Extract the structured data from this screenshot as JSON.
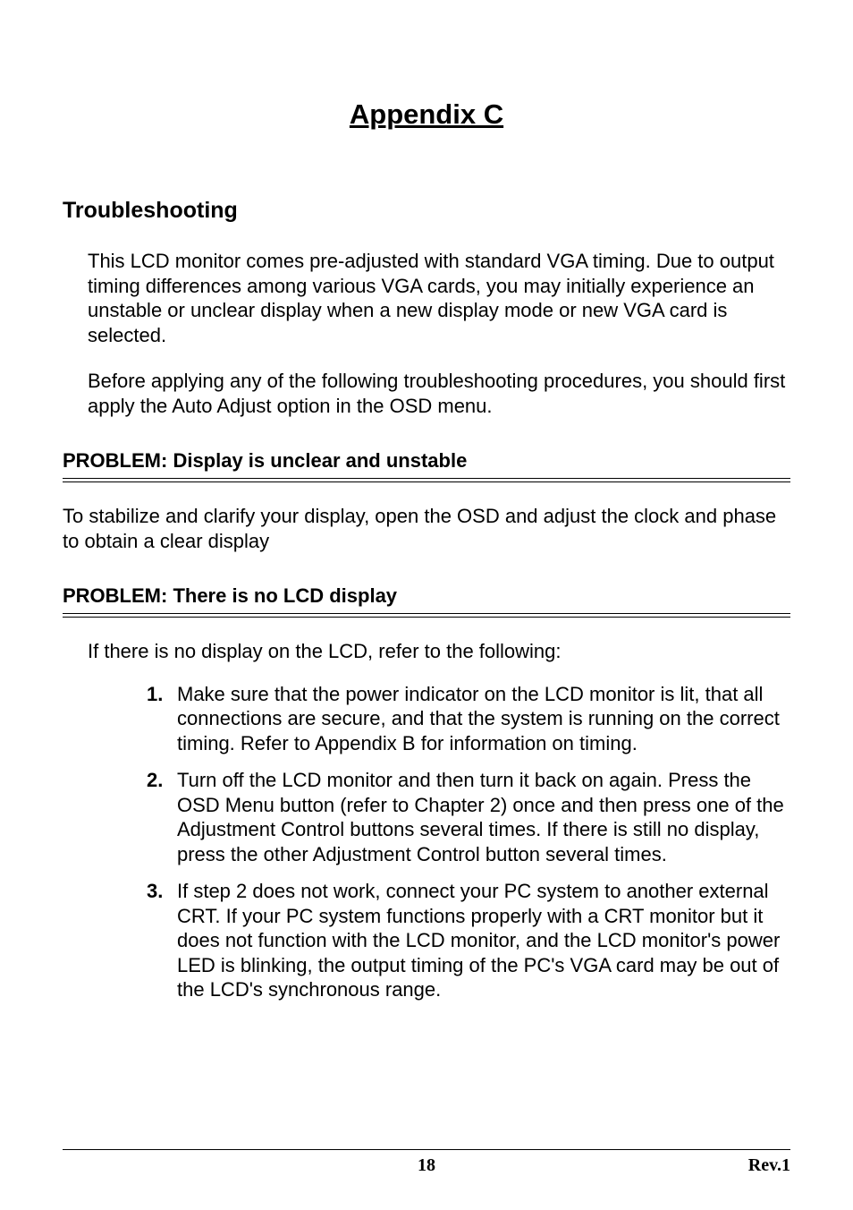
{
  "title": "Appendix C",
  "section_heading": "Troubleshooting",
  "intro_para_1": "This LCD monitor comes pre-adjusted with standard VGA timing. Due to output timing differences among various VGA cards, you may initially experience an unstable or unclear display when a new display mode or new VGA card is selected.",
  "intro_para_2": "Before applying any of the following troubleshooting procedures, you should first apply the Auto Adjust option in the OSD menu.",
  "problems": [
    {
      "heading": "PROBLEM: Display is unclear and unstable",
      "body": "To stabilize and clarify your display, open the OSD and adjust the clock and phase to obtain a clear display"
    },
    {
      "heading": "PROBLEM: There is no LCD display",
      "lead": "If there is no display on the LCD, refer to the following:",
      "items": [
        {
          "num": "1.",
          "text": "Make sure that the power indicator on the LCD monitor is lit, that all connections are secure, and that the system is running on the correct timing.  Refer to Appendix B for information on timing."
        },
        {
          "num": "2.",
          "text": "Turn off the LCD monitor and then turn it back on again.  Press the OSD Menu button (refer to Chapter 2) once and then press one of the Adjustment Control buttons several times. If there is still no display, press the other Adjustment Control button several times."
        },
        {
          "num": "3.",
          "text": "If step 2 does not work, connect your PC system to another external CRT.  If your PC system functions properly with a CRT monitor but it does not function with the LCD monitor, and the LCD monitor's power LED is blinking, the output timing of the PC's VGA card may be out of the LCD's synchronous range."
        }
      ]
    }
  ],
  "footer": {
    "page_number": "18",
    "revision": "Rev.1"
  }
}
